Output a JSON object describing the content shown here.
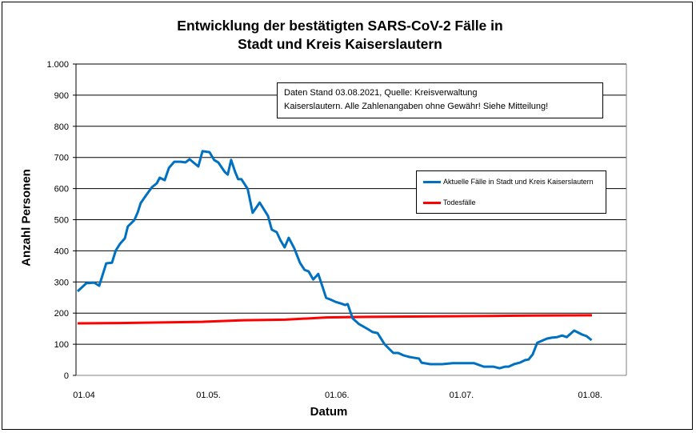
{
  "chart_data": {
    "type": "line",
    "title_line1": "Entwicklung der bestätigten SARS-CoV-2 Fälle in",
    "title_line2": "Stadt und Kreis Kaiserslautern",
    "xlabel": "Datum",
    "ylabel": "Anzahl Personen",
    "ylim": [
      0,
      1000
    ],
    "yticks": [
      0,
      100,
      200,
      300,
      400,
      500,
      600,
      700,
      800,
      900,
      1000
    ],
    "ytick_labels": [
      "0",
      "100",
      "200",
      "300",
      "400",
      "500",
      "600",
      "700",
      "800",
      "900",
      "1.000"
    ],
    "x_unit": "days since 01.04.2021",
    "xlim": [
      0,
      124
    ],
    "xticks": [
      {
        "day": 0,
        "label": "01.04"
      },
      {
        "day": 30,
        "label": "01.05."
      },
      {
        "day": 61,
        "label": "01.06."
      },
      {
        "day": 91,
        "label": "01.07."
      },
      {
        "day": 122,
        "label": "01.08."
      }
    ],
    "grid": true,
    "legend_position": "right",
    "annotation_line1": "Daten Stand 03.08.2021, Quelle: Kreisverwaltung",
    "annotation_line2": "Kaiserslautern. Alle Zahlenangaben ohne Gewähr! Siehe Mitteilung!",
    "series": [
      {
        "name": "Aktuelle Fälle in Stadt und Kreis Kaiserslautern",
        "color": "#0070C0",
        "x": [
          0,
          2.1,
          4.0,
          5.2,
          6.9,
          8.3,
          9.2,
          10.2,
          11.4,
          12.1,
          13.7,
          14.5,
          15.2,
          16.4,
          17.9,
          19.1,
          19.8,
          21.0,
          22.0,
          23.3,
          24.9,
          26.0,
          27.0,
          29.1,
          30.1,
          31.8,
          32.9,
          33.9,
          35.5,
          36.2,
          37.0,
          38.0,
          38.7,
          39.5,
          41.0,
          42.2,
          43.9,
          45.9,
          46.8,
          48.0,
          48.9,
          49.9,
          50.9,
          52.2,
          53.6,
          54.7,
          55.7,
          56.8,
          58.0,
          59.2,
          59.9,
          60.9,
          62.2,
          63.4,
          64.5,
          65.1,
          66.3,
          67.8,
          69.9,
          71.1,
          72.3,
          74.0,
          76.1,
          77.3,
          78.6,
          80.0,
          80.9,
          82.3,
          82.9,
          85.0,
          87.9,
          90.4,
          95.6,
          97.9,
          100.2,
          101.7,
          103.1,
          103.9,
          105.2,
          106.6,
          107.9,
          108.7,
          109.7,
          110.8,
          113.1,
          114.3,
          115.6,
          116.8,
          117.9,
          119.7,
          121.6,
          122.7,
          123.9
        ],
        "values": [
          270,
          296,
          298,
          288,
          360,
          362,
          401,
          422,
          440,
          478,
          499,
          524,
          553,
          576,
          604,
          617,
          635,
          627,
          666,
          686,
          686,
          684,
          694,
          671,
          720,
          717,
          692,
          684,
          653,
          645,
          692,
          653,
          630,
          630,
          599,
          522,
          555,
          512,
          468,
          460,
          434,
          411,
          442,
          409,
          362,
          339,
          334,
          308,
          326,
          278,
          249,
          244,
          236,
          231,
          226,
          229,
          183,
          165,
          149,
          139,
          136,
          100,
          72,
          72,
          64,
          59,
          57,
          54,
          41,
          36,
          36,
          39,
          39,
          28,
          28,
          23,
          28,
          28,
          36,
          41,
          49,
          51,
          67,
          105,
          118,
          121,
          123,
          128,
          123,
          144,
          131,
          126,
          113
        ]
      },
      {
        "name": "Todesfälle",
        "color": "#FF0000",
        "x": [
          0,
          10,
          20,
          30,
          40,
          50,
          60,
          70,
          80,
          90,
          100,
          110,
          124
        ],
        "values": [
          167,
          168,
          170,
          172,
          177,
          179,
          186,
          188,
          189,
          190,
          191,
          192,
          193
        ]
      }
    ]
  }
}
